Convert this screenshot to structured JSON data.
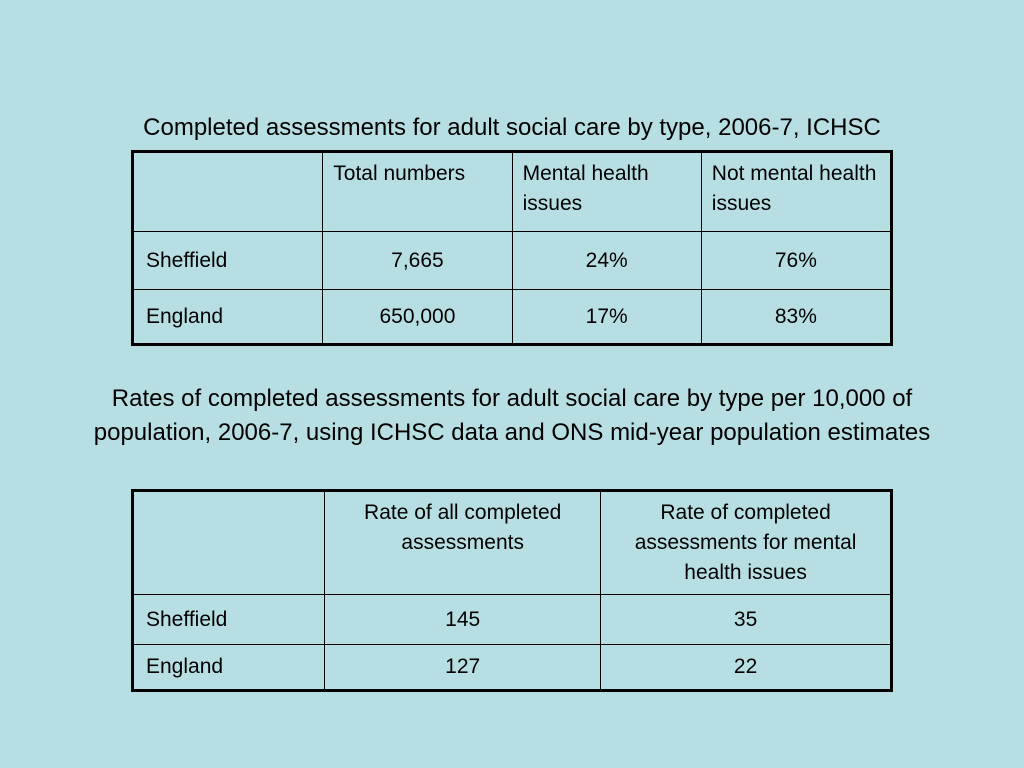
{
  "table1": {
    "title": "Completed assessments for adult social care by type, 2006-7, ICHSC",
    "headers": [
      "",
      "Total numbers",
      "Mental health issues",
      "Not mental health issues"
    ],
    "rows": [
      {
        "label": "Sheffield",
        "total": "7,665",
        "mental": "24%",
        "not_mental": "76%"
      },
      {
        "label": "England",
        "total": "650,000",
        "mental": "17%",
        "not_mental": "83%"
      }
    ]
  },
  "table2": {
    "title": "Rates of completed assessments for adult social care by type per 10,000 of population, 2006-7, using ICHSC data and ONS mid-year population estimates",
    "headers": [
      "",
      "Rate of all completed assessments",
      "Rate of completed assessments for mental health issues"
    ],
    "rows": [
      {
        "label": "Sheffield",
        "all_rate": "145",
        "mh_rate": "35"
      },
      {
        "label": "England",
        "all_rate": "127",
        "mh_rate": "22"
      }
    ]
  }
}
